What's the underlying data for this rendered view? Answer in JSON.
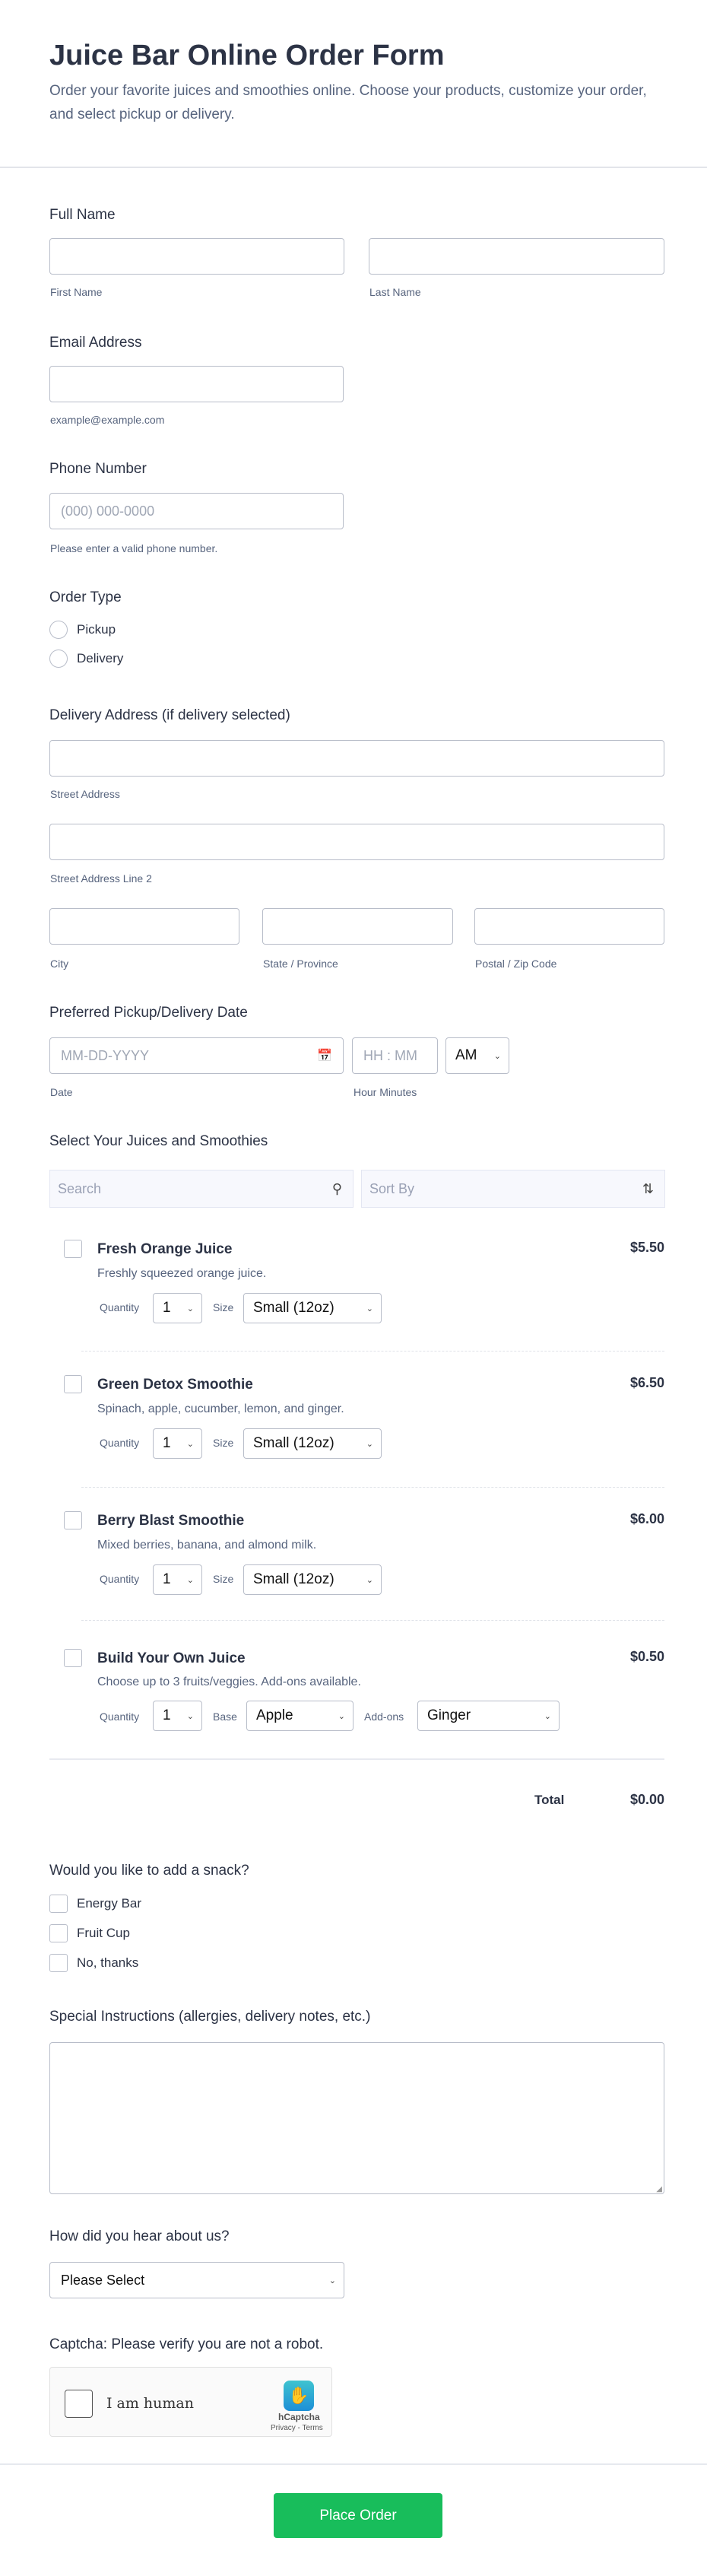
{
  "header": {
    "title": "Juice Bar Online Order Form",
    "description": "Order your favorite juices and smoothies online. Choose your products, customize your order, and select pickup or delivery."
  },
  "full_name": {
    "label": "Full Name",
    "first": "First Name",
    "last": "Last Name"
  },
  "email": {
    "label": "Email Address",
    "hint": "example@example.com"
  },
  "phone": {
    "label": "Phone Number",
    "placeholder": "(000) 000-0000",
    "hint": "Please enter a valid phone number."
  },
  "order_type": {
    "label": "Order Type",
    "options": [
      "Pickup",
      "Delivery"
    ]
  },
  "address": {
    "label": "Delivery Address (if delivery selected)",
    "street": "Street Address",
    "street2": "Street Address Line 2",
    "city": "City",
    "state": "State / Province",
    "zip": "Postal / Zip Code"
  },
  "date": {
    "label": "Preferred Pickup/Delivery Date",
    "date_placeholder": "MM-DD-YYYY",
    "time_placeholder": "HH : MM",
    "ampm": "AM",
    "date_sub": "Date",
    "time_sub": "Hour Minutes"
  },
  "products": {
    "label": "Select Your Juices and Smoothies",
    "search_placeholder": "Search",
    "sort_placeholder": "Sort By",
    "quantity_label": "Quantity",
    "size_label": "Size",
    "base_label": "Base",
    "addons_label": "Add-ons",
    "items": [
      {
        "name": "Fresh Orange Juice",
        "desc": "Freshly squeezed orange juice.",
        "price": "$5.50",
        "qty": "1",
        "size": "Small (12oz)"
      },
      {
        "name": "Green Detox Smoothie",
        "desc": "Spinach, apple, cucumber, lemon, and ginger.",
        "price": "$6.50",
        "qty": "1",
        "size": "Small (12oz)"
      },
      {
        "name": "Berry Blast Smoothie",
        "desc": "Mixed berries, banana, and almond milk.",
        "price": "$6.00",
        "qty": "1",
        "size": "Small (12oz)"
      },
      {
        "name": "Build Your Own Juice",
        "desc": "Choose up to 3 fruits/veggies. Add-ons available.",
        "price": "$0.50",
        "qty": "1",
        "base": "Apple",
        "addons": "Ginger"
      }
    ],
    "total_label": "Total",
    "total": "$0.00"
  },
  "snack": {
    "label": "Would you like to add a snack?",
    "options": [
      "Energy Bar",
      "Fruit Cup",
      "No, thanks"
    ]
  },
  "instructions": {
    "label": "Special Instructions (allergies, delivery notes, etc.)"
  },
  "referral": {
    "label": "How did you hear about us?",
    "value": "Please Select"
  },
  "captcha": {
    "label": "Captcha: Please verify you are not a robot.",
    "checkbox": "I am human",
    "brand": "hCaptcha",
    "links": "Privacy - Terms"
  },
  "submit": {
    "label": "Place Order",
    "color": "#18bd5b"
  }
}
